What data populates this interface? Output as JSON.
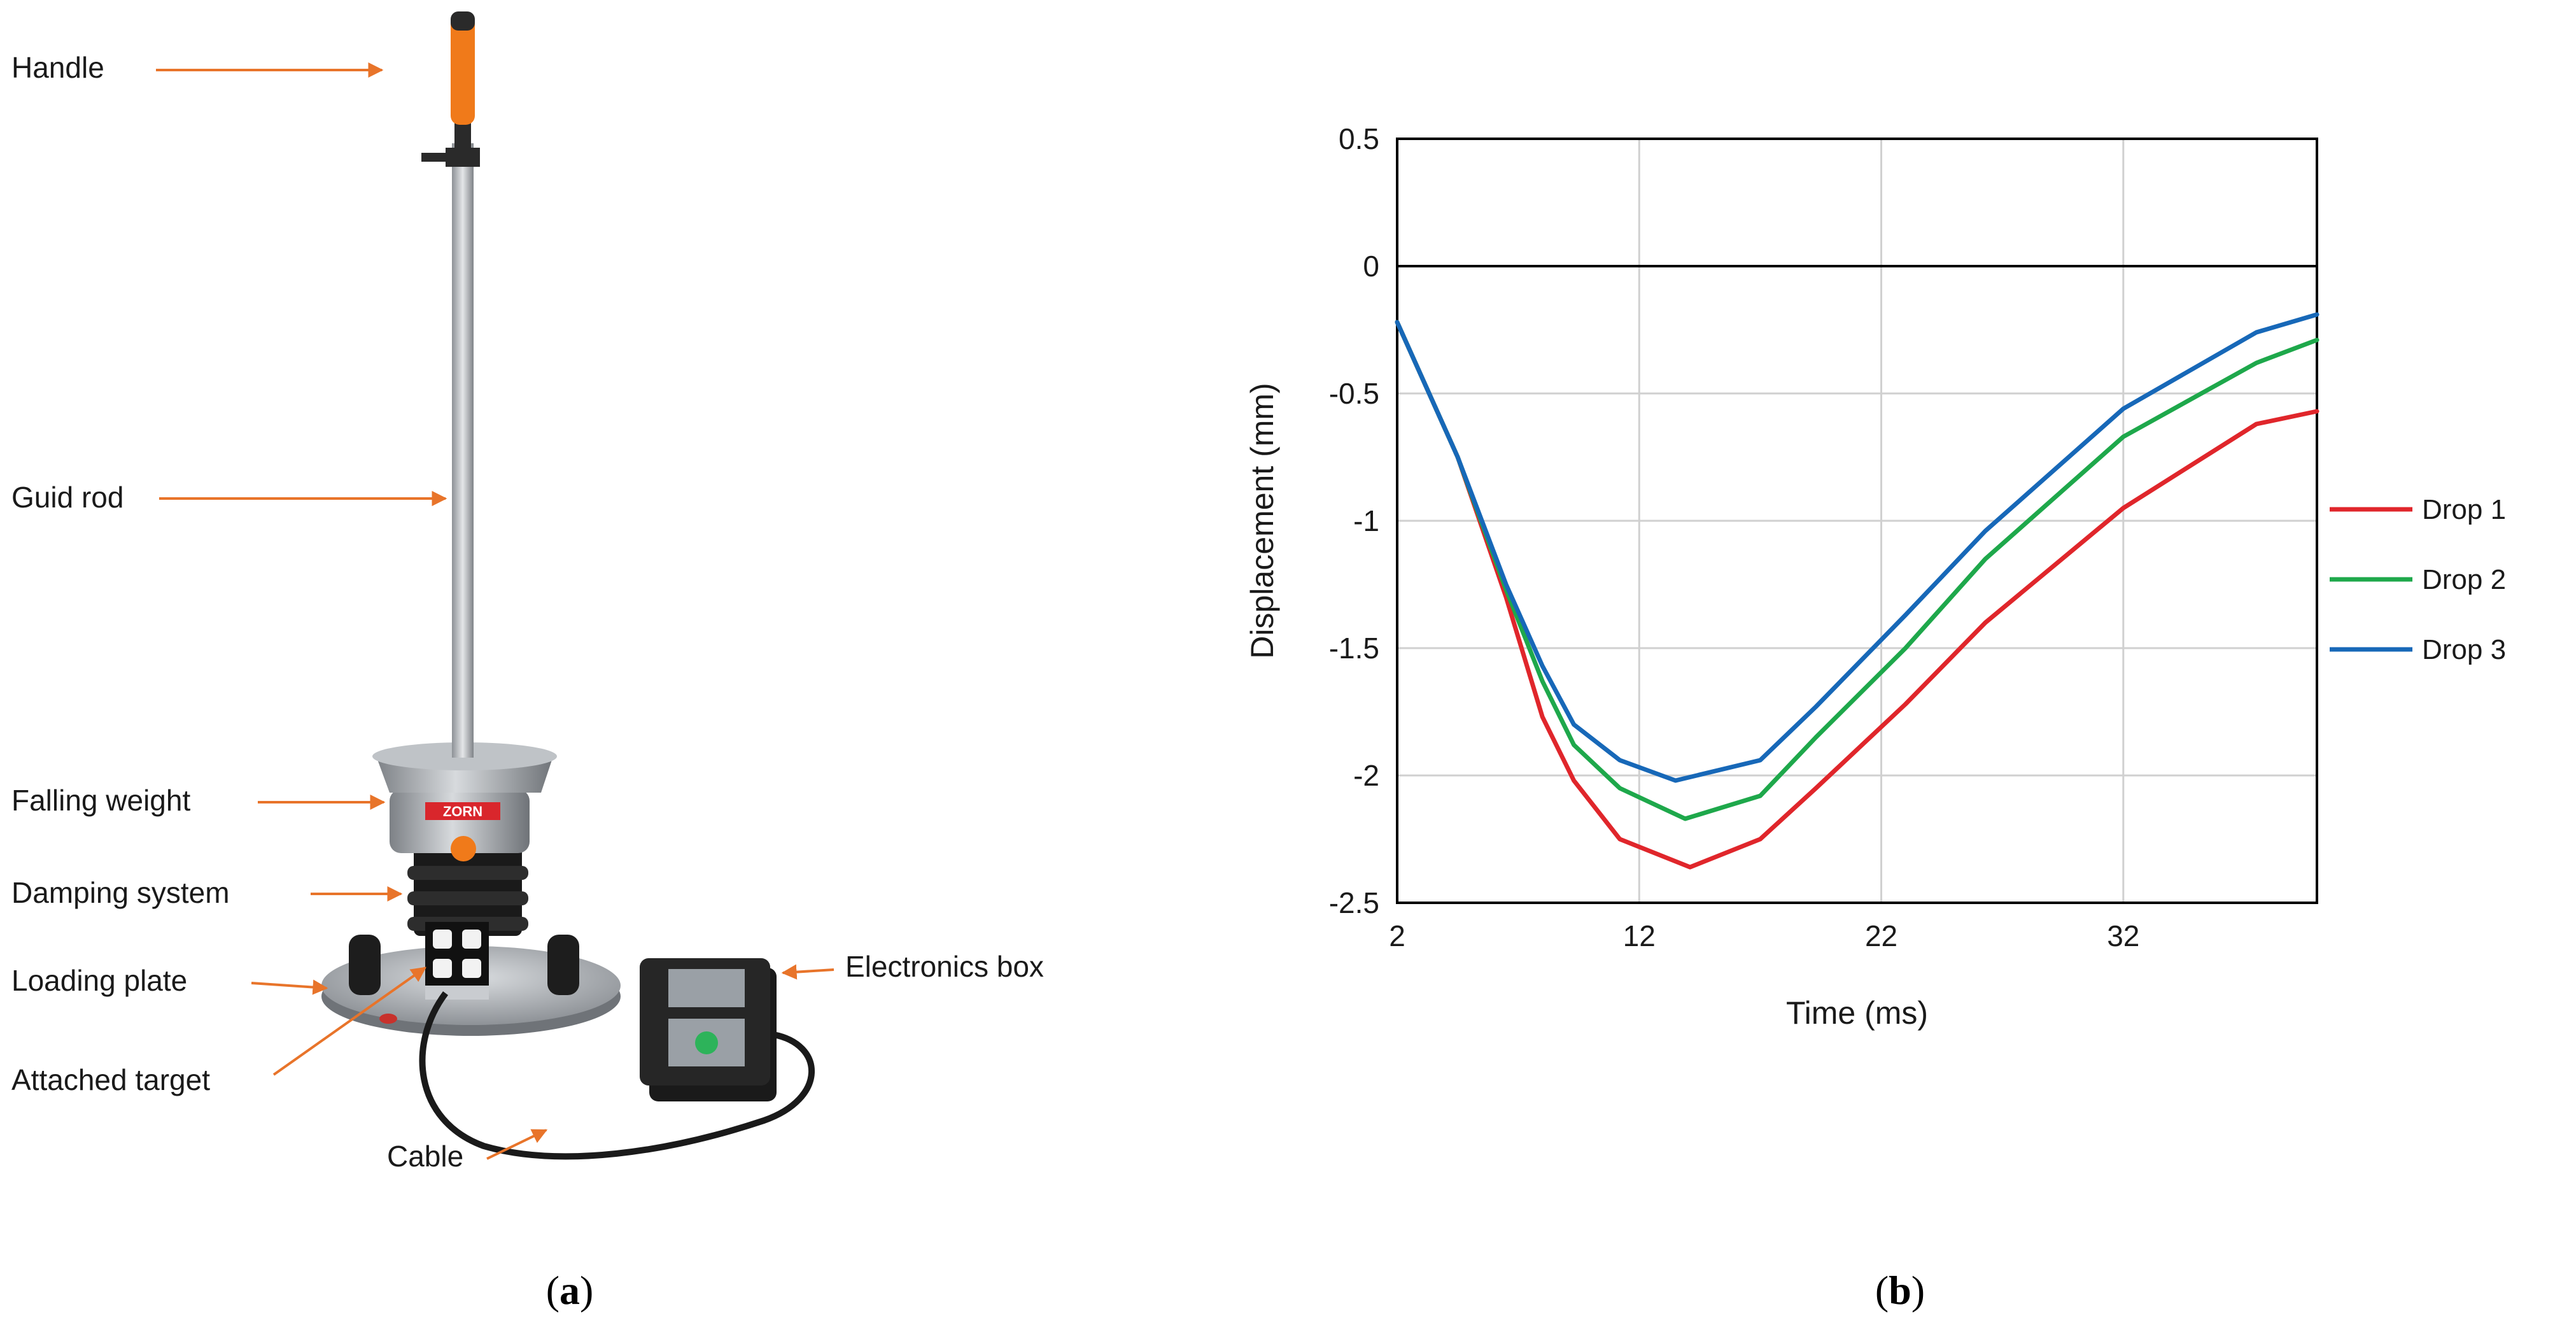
{
  "panel_a": {
    "caption_letter": "a",
    "labels": {
      "handle": "Handle",
      "guide_rod": "Guid rod",
      "falling_weight": "Falling weight",
      "damping_system": "Damping system",
      "loading_plate": "Loading plate",
      "attached_target": "Attached target",
      "cable": "Cable",
      "electronics_box": "Electronics box"
    },
    "device_brand": "ZORN",
    "colors": {
      "arrow": "#e8742a",
      "handle": "#f07a1a",
      "metal": "#a9adb1"
    }
  },
  "panel_b": {
    "caption_letter": "b",
    "legend_entries": [
      "Drop 1",
      "Drop 2",
      "Drop 3"
    ]
  },
  "chart_data": {
    "type": "line",
    "title": "",
    "xlabel": "Time (ms)",
    "ylabel": "Displacement (mm)",
    "xlim": [
      2,
      40
    ],
    "ylim": [
      -2.5,
      0.5
    ],
    "xticks": [
      "2",
      "12",
      "22",
      "32"
    ],
    "yticks": [
      "0.5",
      "0",
      "-0.5",
      "-1",
      "-1.5",
      "-2",
      "-2.5"
    ],
    "grid": true,
    "legend_position": "right",
    "series": [
      {
        "name": "Drop 1",
        "color": "#e0262b",
        "x": [
          2,
          4.5,
          6.5,
          8,
          9.3,
          11.2,
          14.1,
          17,
          19.3,
          23,
          26.3,
          32,
          37.5,
          40
        ],
        "y": [
          -0.22,
          -0.75,
          -1.3,
          -1.77,
          -2.02,
          -2.25,
          -2.36,
          -2.25,
          -2.05,
          -1.72,
          -1.4,
          -0.95,
          -0.62,
          -0.57
        ]
      },
      {
        "name": "Drop 2",
        "color": "#1ea84b",
        "x": [
          2,
          4.5,
          6.5,
          8,
          9.3,
          11.2,
          13.9,
          17,
          19.3,
          23,
          26.3,
          32,
          37.5,
          40
        ],
        "y": [
          -0.22,
          -0.75,
          -1.27,
          -1.63,
          -1.88,
          -2.05,
          -2.17,
          -2.08,
          -1.85,
          -1.5,
          -1.15,
          -0.67,
          -0.38,
          -0.29
        ]
      },
      {
        "name": "Drop 3",
        "color": "#1768b8",
        "x": [
          2,
          4.5,
          6.5,
          8,
          9.3,
          11.2,
          13.5,
          17,
          19.3,
          23,
          26.3,
          32,
          37.5,
          40
        ],
        "y": [
          -0.22,
          -0.75,
          -1.25,
          -1.57,
          -1.8,
          -1.94,
          -2.02,
          -1.94,
          -1.73,
          -1.37,
          -1.04,
          -0.56,
          -0.26,
          -0.19
        ]
      }
    ]
  }
}
